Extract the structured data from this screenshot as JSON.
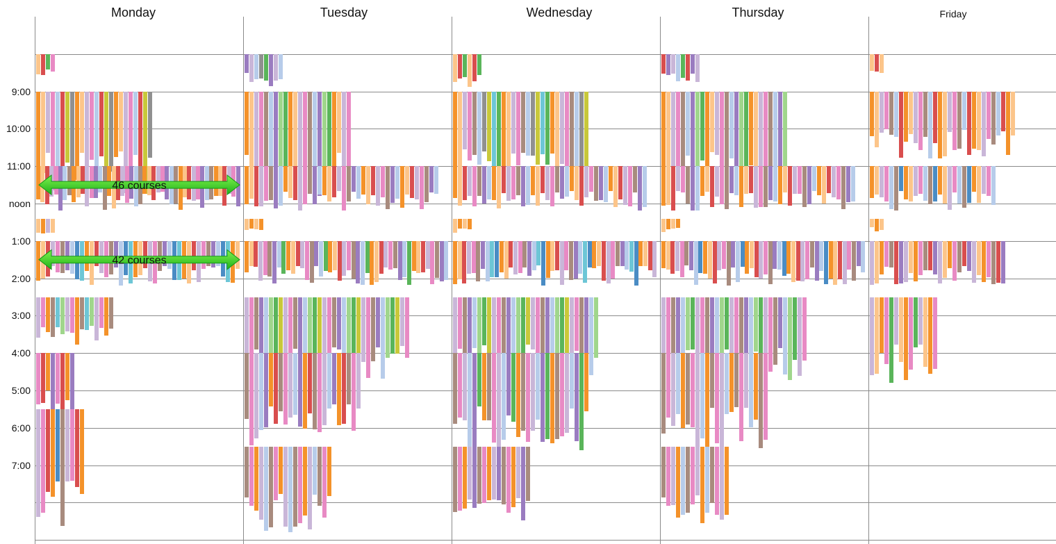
{
  "chart_data": {
    "type": "schedule",
    "days": [
      "Monday",
      "Tuesday",
      "Wednesday",
      "Thursday",
      "Friday"
    ],
    "time_labels": [
      "9:00",
      "10:00",
      "11:00",
      "noon",
      "1:00",
      "2:00",
      "3:00",
      "4:00",
      "5:00",
      "6:00",
      "7:00"
    ],
    "time_range_hours": [
      7,
      21
    ],
    "annotations": [
      {
        "text": "46 courses",
        "day": "Monday",
        "start": 11.5,
        "end": 11.5
      },
      {
        "text": "42 courses",
        "day": "Monday",
        "start": 13.5,
        "end": 13.5
      }
    ],
    "palette": [
      "#4a8cc4",
      "#f4922a",
      "#fcc58a",
      "#d94e4e",
      "#c9b6d8",
      "#e88ac4",
      "#a88b7e",
      "#5ab55a",
      "#9a7cc0",
      "#b7ccea",
      "#a0d68c",
      "#c8c83a",
      "#6dc6d6",
      "#909090",
      "#8c5a4a"
    ],
    "slots": [
      {
        "day": 0,
        "start": 8.0,
        "end": 8.7,
        "count": 4,
        "colors": [
          2,
          3,
          7,
          5
        ]
      },
      {
        "day": 0,
        "start": 9.0,
        "end": 11.8,
        "count": 24,
        "colors": [
          1,
          2,
          4,
          5,
          9,
          3,
          11,
          13
        ]
      },
      {
        "day": 0,
        "start": 11.0,
        "end": 12.2,
        "count": 46,
        "colors": [
          1,
          2,
          3,
          4,
          5,
          8,
          9,
          6
        ]
      },
      {
        "day": 0,
        "start": 12.4,
        "end": 12.8,
        "count": 4,
        "colors": [
          2,
          1,
          4
        ]
      },
      {
        "day": 0,
        "start": 13.0,
        "end": 14.2,
        "count": 42,
        "colors": [
          1,
          2,
          3,
          4,
          5,
          6,
          8,
          9,
          0,
          12
        ]
      },
      {
        "day": 0,
        "start": 14.5,
        "end": 15.9,
        "count": 16,
        "colors": [
          4,
          5,
          1,
          6,
          12,
          10
        ]
      },
      {
        "day": 0,
        "start": 16.0,
        "end": 17.8,
        "count": 8,
        "colors": [
          5,
          3,
          1,
          8
        ]
      },
      {
        "day": 0,
        "start": 17.5,
        "end": 20.8,
        "count": 10,
        "colors": [
          4,
          5,
          3,
          1,
          0,
          6
        ]
      },
      {
        "day": 1,
        "start": 8.0,
        "end": 8.9,
        "count": 8,
        "colors": [
          8,
          4,
          9,
          13,
          7
        ]
      },
      {
        "day": 1,
        "start": 9.0,
        "end": 11.8,
        "count": 22,
        "colors": [
          1,
          2,
          4,
          5,
          6,
          9,
          8,
          10,
          7
        ]
      },
      {
        "day": 1,
        "start": 11.0,
        "end": 12.2,
        "count": 40,
        "colors": [
          1,
          2,
          3,
          4,
          5,
          6,
          8,
          9
        ]
      },
      {
        "day": 1,
        "start": 12.4,
        "end": 12.8,
        "count": 4,
        "colors": [
          2,
          1
        ]
      },
      {
        "day": 1,
        "start": 13.0,
        "end": 14.2,
        "count": 44,
        "colors": [
          1,
          2,
          3,
          4,
          5,
          6,
          8,
          9,
          7
        ]
      },
      {
        "day": 1,
        "start": 14.5,
        "end": 16.8,
        "count": 34,
        "colors": [
          4,
          5,
          6,
          8,
          9,
          10,
          7,
          11
        ]
      },
      {
        "day": 1,
        "start": 16.0,
        "end": 18.5,
        "count": 24,
        "colors": [
          6,
          5,
          4,
          9,
          8,
          1,
          3
        ]
      },
      {
        "day": 1,
        "start": 18.5,
        "end": 20.8,
        "count": 18,
        "colors": [
          6,
          5,
          1,
          4,
          9
        ]
      },
      {
        "day": 2,
        "start": 8.0,
        "end": 8.9,
        "count": 6,
        "colors": [
          2,
          3,
          7
        ]
      },
      {
        "day": 2,
        "start": 9.0,
        "end": 11.8,
        "count": 28,
        "colors": [
          1,
          2,
          4,
          5,
          6,
          9,
          13,
          11,
          12,
          7
        ]
      },
      {
        "day": 2,
        "start": 11.0,
        "end": 12.2,
        "count": 40,
        "colors": [
          1,
          2,
          3,
          4,
          5,
          6,
          8,
          9
        ]
      },
      {
        "day": 2,
        "start": 12.4,
        "end": 12.8,
        "count": 4,
        "colors": [
          2,
          1
        ]
      },
      {
        "day": 2,
        "start": 13.0,
        "end": 14.2,
        "count": 44,
        "colors": [
          1,
          2,
          3,
          4,
          5,
          6,
          8,
          9,
          12,
          0
        ]
      },
      {
        "day": 2,
        "start": 14.5,
        "end": 16.8,
        "count": 30,
        "colors": [
          4,
          5,
          6,
          8,
          9,
          10,
          7,
          11
        ]
      },
      {
        "day": 2,
        "start": 16.0,
        "end": 18.6,
        "count": 28,
        "colors": [
          6,
          5,
          4,
          9,
          8,
          7,
          1
        ]
      },
      {
        "day": 2,
        "start": 18.5,
        "end": 20.8,
        "count": 16,
        "colors": [
          6,
          5,
          1,
          4,
          8
        ]
      },
      {
        "day": 3,
        "start": 8.0,
        "end": 8.9,
        "count": 8,
        "colors": [
          3,
          8,
          4,
          9,
          7
        ]
      },
      {
        "day": 3,
        "start": 9.0,
        "end": 11.8,
        "count": 26,
        "colors": [
          1,
          2,
          4,
          5,
          6,
          9,
          8,
          10,
          7
        ]
      },
      {
        "day": 3,
        "start": 11.0,
        "end": 12.2,
        "count": 40,
        "colors": [
          1,
          2,
          3,
          4,
          5,
          6,
          8,
          9
        ]
      },
      {
        "day": 3,
        "start": 12.4,
        "end": 12.8,
        "count": 4,
        "colors": [
          2,
          1
        ]
      },
      {
        "day": 3,
        "start": 13.0,
        "end": 14.2,
        "count": 44,
        "colors": [
          1,
          2,
          3,
          4,
          5,
          6,
          8,
          9,
          0
        ]
      },
      {
        "day": 3,
        "start": 14.5,
        "end": 16.8,
        "count": 30,
        "colors": [
          4,
          5,
          6,
          8,
          9,
          10,
          7
        ]
      },
      {
        "day": 3,
        "start": 16.0,
        "end": 18.6,
        "count": 22,
        "colors": [
          6,
          5,
          4,
          9,
          1
        ]
      },
      {
        "day": 3,
        "start": 18.5,
        "end": 20.8,
        "count": 14,
        "colors": [
          6,
          5,
          4,
          1,
          9
        ]
      },
      {
        "day": 4,
        "start": 8.0,
        "end": 8.7,
        "count": 3,
        "colors": [
          2,
          3
        ]
      },
      {
        "day": 4,
        "start": 9.0,
        "end": 10.8,
        "count": 30,
        "colors": [
          1,
          2,
          4,
          5,
          6,
          9,
          3
        ]
      },
      {
        "day": 4,
        "start": 11.0,
        "end": 12.2,
        "count": 26,
        "colors": [
          1,
          2,
          4,
          5,
          9,
          6,
          0
        ]
      },
      {
        "day": 4,
        "start": 12.4,
        "end": 12.8,
        "count": 3,
        "colors": [
          2,
          1
        ]
      },
      {
        "day": 4,
        "start": 13.0,
        "end": 14.2,
        "count": 28,
        "colors": [
          4,
          2,
          1,
          5,
          6,
          3,
          8
        ]
      },
      {
        "day": 4,
        "start": 14.5,
        "end": 16.8,
        "count": 14,
        "colors": [
          4,
          2,
          1,
          5,
          7
        ]
      }
    ]
  }
}
